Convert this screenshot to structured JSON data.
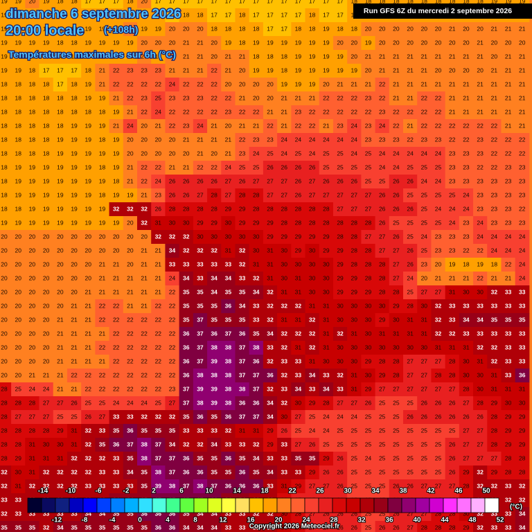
{
  "header": {
    "date": "dimanche 6 septembre 2026",
    "time": "20:00 locale",
    "lead": "(+108h)",
    "subtitle": "Températures maximales sur 6h (°C)"
  },
  "run": "Run GFS 6Z du mercredi 2 septembre 2026",
  "copyright": "Copyright 2026 Meteociel.fr",
  "scale": {
    "unit": "(°C)",
    "bounds": [
      -14,
      -12,
      -10,
      -8,
      -6,
      -4,
      -2,
      0,
      2,
      4,
      6,
      8,
      10,
      12,
      14,
      16,
      18,
      20,
      22,
      24,
      26,
      28,
      30,
      32,
      34,
      36,
      38,
      40,
      42,
      44,
      46,
      48,
      50,
      52
    ],
    "colors": [
      "#000030",
      "#0a0a60",
      "#102080",
      "#0000c0",
      "#0000ff",
      "#0040ff",
      "#0080ff",
      "#00b0ff",
      "#30e0ff",
      "#50ffe0",
      "#40ff90",
      "#60ff40",
      "#a0ff20",
      "#e0ff20",
      "#ffff40",
      "#ffe060",
      "#ffc000",
      "#ffa000",
      "#ff8020",
      "#ff6030",
      "#f84030",
      "#e82020",
      "#d80808",
      "#c80000",
      "#b00008",
      "#980018",
      "#800040",
      "#900070",
      "#a000a0",
      "#d000d0",
      "#ff30ff",
      "#ff70ff",
      "#ffb0ff",
      "#ffffff"
    ]
  },
  "grid": [
    [
      19,
      19,
      20,
      19,
      18,
      18,
      17,
      17,
      17,
      18,
      20,
      17,
      17,
      17,
      17,
      17,
      17,
      17,
      17,
      17,
      17,
      17,
      17,
      17,
      17,
      18,
      18,
      18,
      18,
      18,
      18,
      18,
      18,
      18,
      18,
      19,
      19,
      19
    ],
    [
      19,
      19,
      19,
      19,
      19,
      19,
      18,
      18,
      18,
      18,
      19,
      19,
      17,
      18,
      18,
      17,
      17,
      18,
      17,
      17,
      17,
      17,
      18,
      17,
      17,
      18,
      18,
      18,
      18,
      18,
      18,
      18,
      19,
      18,
      18,
      19,
      19,
      19
    ],
    [
      19,
      19,
      19,
      19,
      19,
      19,
      19,
      19,
      19,
      20,
      19,
      19,
      20,
      20,
      20,
      18,
      18,
      18,
      18,
      17,
      17,
      18,
      18,
      19,
      18,
      18,
      20,
      20,
      20,
      20,
      20,
      20,
      21,
      20,
      20,
      21,
      21,
      21
    ],
    [
      19,
      19,
      19,
      19,
      18,
      18,
      19,
      19,
      19,
      19,
      20,
      20,
      20,
      21,
      21,
      20,
      19,
      18,
      19,
      19,
      19,
      19,
      19,
      19,
      20,
      20,
      19,
      20,
      20,
      20,
      20,
      20,
      20,
      20,
      21,
      20,
      20,
      20
    ],
    [
      19,
      19,
      19,
      19,
      18,
      18,
      19,
      19,
      19,
      19,
      20,
      19,
      20,
      21,
      21,
      20,
      21,
      21,
      18,
      18,
      18,
      19,
      19,
      19,
      19,
      20,
      21,
      21,
      21,
      21,
      21,
      21,
      21,
      21,
      21,
      20,
      21,
      21
    ],
    [
      19,
      19,
      18,
      17,
      17,
      17,
      18,
      21,
      22,
      23,
      23,
      23,
      21,
      21,
      21,
      22,
      21,
      20,
      19,
      19,
      18,
      19,
      19,
      19,
      19,
      19,
      20,
      21,
      21,
      21,
      21,
      20,
      20,
      20,
      20,
      21,
      21,
      21
    ],
    [
      18,
      18,
      18,
      18,
      17,
      18,
      19,
      21,
      22,
      22,
      22,
      22,
      24,
      22,
      22,
      22,
      20,
      20,
      20,
      20,
      19,
      19,
      19,
      20,
      21,
      21,
      21,
      22,
      21,
      21,
      21,
      21,
      21,
      21,
      21,
      21,
      21,
      21
    ],
    [
      18,
      18,
      18,
      18,
      18,
      18,
      19,
      19,
      21,
      22,
      23,
      25,
      23,
      23,
      23,
      22,
      22,
      21,
      20,
      20,
      21,
      21,
      21,
      22,
      22,
      22,
      23,
      22,
      21,
      21,
      22,
      22,
      21,
      21,
      21,
      21,
      21,
      21
    ],
    [
      18,
      18,
      18,
      18,
      18,
      18,
      18,
      18,
      19,
      21,
      22,
      24,
      22,
      22,
      22,
      22,
      23,
      22,
      22,
      21,
      21,
      23,
      22,
      22,
      22,
      22,
      22,
      23,
      22,
      22,
      22,
      22,
      21,
      21,
      21,
      21,
      21,
      21
    ],
    [
      18,
      18,
      18,
      18,
      18,
      19,
      19,
      19,
      21,
      24,
      20,
      21,
      22,
      23,
      24,
      21,
      20,
      21,
      21,
      22,
      21,
      22,
      22,
      21,
      23,
      24,
      23,
      24,
      22,
      21,
      22,
      22,
      22,
      22,
      22,
      22,
      21,
      21
    ],
    [
      18,
      18,
      18,
      18,
      19,
      19,
      19,
      18,
      19,
      20,
      20,
      20,
      20,
      21,
      21,
      21,
      21,
      22,
      23,
      23,
      24,
      24,
      24,
      24,
      24,
      24,
      23,
      23,
      23,
      22,
      23,
      23,
      22,
      22,
      23,
      22,
      22,
      22
    ],
    [
      18,
      18,
      18,
      18,
      19,
      19,
      19,
      19,
      19,
      20,
      20,
      20,
      20,
      20,
      21,
      20,
      21,
      23,
      24,
      25,
      24,
      25,
      24,
      25,
      25,
      24,
      25,
      24,
      24,
      24,
      24,
      24,
      23,
      23,
      23,
      22,
      22,
      22
    ],
    [
      18,
      19,
      19,
      19,
      19,
      19,
      19,
      18,
      19,
      21,
      22,
      22,
      21,
      21,
      22,
      22,
      24,
      25,
      25,
      26,
      26,
      26,
      26,
      25,
      25,
      25,
      25,
      24,
      24,
      25,
      25,
      25,
      23,
      23,
      22,
      22,
      23,
      23
    ],
    [
      18,
      19,
      19,
      19,
      19,
      19,
      19,
      19,
      18,
      21,
      22,
      24,
      26,
      26,
      26,
      26,
      27,
      26,
      27,
      27,
      27,
      26,
      27,
      26,
      26,
      26,
      25,
      25,
      26,
      26,
      24,
      24,
      23,
      23,
      23,
      23,
      23,
      23
    ],
    [
      18,
      19,
      19,
      19,
      19,
      19,
      19,
      18,
      19,
      19,
      21,
      23,
      26,
      26,
      27,
      28,
      27,
      28,
      28,
      27,
      27,
      26,
      27,
      27,
      27,
      27,
      27,
      26,
      26,
      25,
      25,
      25,
      25,
      24,
      23,
      23,
      23,
      23
    ],
    [
      18,
      18,
      19,
      19,
      19,
      19,
      19,
      19,
      32,
      32,
      32,
      26,
      28,
      28,
      28,
      28,
      29,
      29,
      28,
      28,
      28,
      28,
      28,
      28,
      27,
      27,
      27,
      26,
      26,
      26,
      25,
      24,
      24,
      24,
      23,
      23,
      23,
      22
    ],
    [
      19,
      19,
      19,
      19,
      19,
      19,
      19,
      19,
      19,
      20,
      32,
      31,
      30,
      30,
      29,
      29,
      30,
      29,
      29,
      29,
      28,
      28,
      28,
      28,
      28,
      28,
      28,
      26,
      25,
      25,
      25,
      25,
      24,
      23,
      24,
      23,
      23,
      23
    ],
    [
      20,
      20,
      20,
      20,
      20,
      20,
      20,
      20,
      20,
      20,
      20,
      32,
      32,
      32,
      30,
      30,
      30,
      30,
      30,
      29,
      29,
      29,
      29,
      29,
      28,
      28,
      27,
      27,
      26,
      25,
      24,
      23,
      23,
      23,
      24,
      24,
      24,
      24
    ],
    [
      20,
      20,
      20,
      20,
      20,
      20,
      20,
      20,
      20,
      20,
      21,
      21,
      34,
      32,
      32,
      32,
      31,
      32,
      30,
      31,
      30,
      29,
      30,
      29,
      29,
      28,
      28,
      27,
      27,
      26,
      25,
      23,
      23,
      22,
      22,
      24,
      24,
      24
    ],
    [
      20,
      20,
      20,
      20,
      20,
      20,
      20,
      21,
      21,
      20,
      21,
      21,
      33,
      33,
      33,
      33,
      33,
      32,
      31,
      31,
      30,
      30,
      30,
      30,
      29,
      28,
      28,
      28,
      27,
      26,
      23,
      20,
      19,
      18,
      19,
      18,
      22,
      24
    ],
    [
      20,
      20,
      20,
      20,
      20,
      20,
      20,
      21,
      21,
      21,
      21,
      21,
      24,
      34,
      33,
      34,
      34,
      33,
      32,
      31,
      30,
      31,
      30,
      30,
      29,
      29,
      28,
      28,
      27,
      24,
      20,
      21,
      21,
      21,
      22,
      21,
      21,
      24
    ],
    [
      20,
      20,
      20,
      20,
      20,
      20,
      21,
      21,
      21,
      21,
      21,
      21,
      22,
      35,
      35,
      34,
      35,
      35,
      34,
      32,
      31,
      31,
      30,
      30,
      29,
      29,
      29,
      28,
      28,
      25,
      27,
      27,
      31,
      30,
      30,
      32,
      33,
      33
    ],
    [
      20,
      20,
      20,
      20,
      20,
      21,
      21,
      22,
      22,
      21,
      21,
      22,
      22,
      35,
      35,
      35,
      36,
      34,
      33,
      32,
      32,
      32,
      31,
      31,
      30,
      30,
      30,
      30,
      29,
      28,
      30,
      32,
      33,
      33,
      33,
      33,
      33,
      33
    ],
    [
      20,
      20,
      20,
      20,
      21,
      21,
      21,
      22,
      22,
      22,
      22,
      22,
      22,
      35,
      37,
      35,
      35,
      35,
      33,
      32,
      31,
      31,
      32,
      31,
      30,
      30,
      30,
      29,
      30,
      31,
      31,
      32,
      33,
      34,
      34,
      35,
      35,
      35
    ],
    [
      20,
      20,
      20,
      20,
      21,
      21,
      21,
      21,
      22,
      22,
      22,
      22,
      22,
      36,
      37,
      36,
      37,
      36,
      35,
      34,
      32,
      32,
      32,
      31,
      32,
      31,
      30,
      31,
      31,
      31,
      31,
      32,
      32,
      33,
      33,
      33,
      33,
      33
    ],
    [
      20,
      20,
      20,
      20,
      21,
      21,
      21,
      22,
      22,
      22,
      22,
      22,
      22,
      36,
      37,
      38,
      38,
      37,
      38,
      33,
      32,
      31,
      32,
      31,
      30,
      30,
      30,
      30,
      30,
      30,
      30,
      31,
      31,
      31,
      32,
      32,
      33,
      33
    ],
    [
      20,
      20,
      20,
      20,
      21,
      21,
      21,
      21,
      22,
      22,
      22,
      22,
      22,
      36,
      37,
      39,
      38,
      37,
      36,
      32,
      33,
      33,
      31,
      30,
      30,
      30,
      29,
      28,
      28,
      27,
      27,
      27,
      28,
      30,
      31,
      32,
      33,
      33
    ],
    [
      20,
      20,
      21,
      21,
      21,
      22,
      22,
      22,
      22,
      22,
      22,
      22,
      22,
      36,
      38,
      38,
      38,
      37,
      37,
      36,
      32,
      33,
      34,
      33,
      32,
      31,
      30,
      29,
      28,
      27,
      27,
      28,
      28,
      30,
      30,
      31,
      33,
      36
    ],
    [
      28,
      25,
      24,
      24,
      21,
      21,
      22,
      22,
      22,
      22,
      22,
      22,
      23,
      37,
      39,
      39,
      38,
      38,
      37,
      32,
      33,
      34,
      33,
      34,
      33,
      31,
      29,
      27,
      27,
      27,
      27,
      27,
      27,
      28,
      30,
      31,
      31,
      31
    ],
    [
      28,
      28,
      28,
      27,
      27,
      26,
      25,
      25,
      24,
      24,
      24,
      25,
      27,
      37,
      38,
      39,
      38,
      36,
      36,
      34,
      32,
      30,
      29,
      28,
      27,
      27,
      26,
      25,
      25,
      25,
      26,
      26,
      26,
      27,
      28,
      29,
      30,
      30
    ],
    [
      28,
      27,
      27,
      27,
      25,
      25,
      26,
      27,
      33,
      33,
      32,
      32,
      32,
      35,
      36,
      35,
      36,
      37,
      37,
      34,
      30,
      27,
      25,
      24,
      24,
      24,
      25,
      25,
      25,
      26,
      26,
      26,
      26,
      26,
      26,
      28,
      29,
      29
    ],
    [
      28,
      28,
      28,
      28,
      29,
      31,
      32,
      33,
      35,
      36,
      35,
      35,
      35,
      33,
      33,
      33,
      32,
      31,
      31,
      29,
      26,
      25,
      24,
      24,
      25,
      25,
      25,
      25,
      25,
      25,
      25,
      25,
      25,
      27,
      27,
      28,
      29,
      29
    ],
    [
      28,
      28,
      31,
      30,
      30,
      31,
      32,
      35,
      36,
      37,
      38,
      37,
      34,
      32,
      32,
      34,
      33,
      33,
      32,
      29,
      33,
      27,
      26,
      25,
      25,
      25,
      25,
      25,
      25,
      25,
      25,
      25,
      26,
      27,
      27,
      28,
      29,
      29
    ],
    [
      28,
      29,
      31,
      31,
      31,
      32,
      32,
      32,
      33,
      35,
      38,
      37,
      37,
      36,
      35,
      35,
      36,
      35,
      34,
      33,
      33,
      35,
      35,
      29,
      26,
      25,
      24,
      25,
      25,
      25,
      25,
      25,
      26,
      27,
      27,
      27,
      28,
      28
    ],
    [
      32,
      30,
      31,
      32,
      32,
      32,
      32,
      33,
      33,
      34,
      35,
      38,
      37,
      36,
      36,
      35,
      35,
      36,
      35,
      34,
      33,
      33,
      29,
      26,
      26,
      25,
      25,
      25,
      25,
      25,
      25,
      25,
      26,
      29,
      32,
      29,
      28,
      28
    ],
    [
      32,
      31,
      32,
      32,
      32,
      32,
      33,
      33,
      33,
      33,
      35,
      39,
      38,
      37,
      38,
      37,
      36,
      36,
      36,
      33,
      31,
      29,
      27,
      27,
      26,
      25,
      25,
      25,
      26,
      26,
      27,
      27,
      27,
      28,
      32,
      32,
      33,
      32
    ],
    [
      33,
      33,
      33,
      33,
      33,
      33,
      33,
      33,
      34,
      34,
      35,
      37,
      37,
      37,
      37,
      36,
      34,
      34,
      33,
      32,
      29,
      27,
      27,
      26,
      26,
      25,
      25,
      25,
      26,
      26,
      27,
      27,
      27,
      28,
      32,
      32,
      32,
      32
    ],
    [
      32,
      33,
      33,
      33,
      33,
      33,
      34,
      34,
      35,
      35,
      36,
      36,
      36,
      35,
      34,
      34,
      33,
      33,
      32,
      32,
      30,
      28,
      27,
      26,
      26,
      26,
      25,
      25,
      26,
      27,
      27,
      28,
      28,
      30,
      32,
      33,
      33,
      34
    ],
    [
      35,
      35,
      35,
      32,
      34,
      35,
      35,
      35,
      35,
      35,
      35,
      36,
      36,
      34,
      34,
      34,
      33,
      33,
      33,
      32,
      30,
      28,
      27,
      27,
      26,
      26,
      25,
      26,
      26,
      27,
      28,
      28,
      28,
      29,
      32,
      33,
      33,
      34
    ]
  ]
}
